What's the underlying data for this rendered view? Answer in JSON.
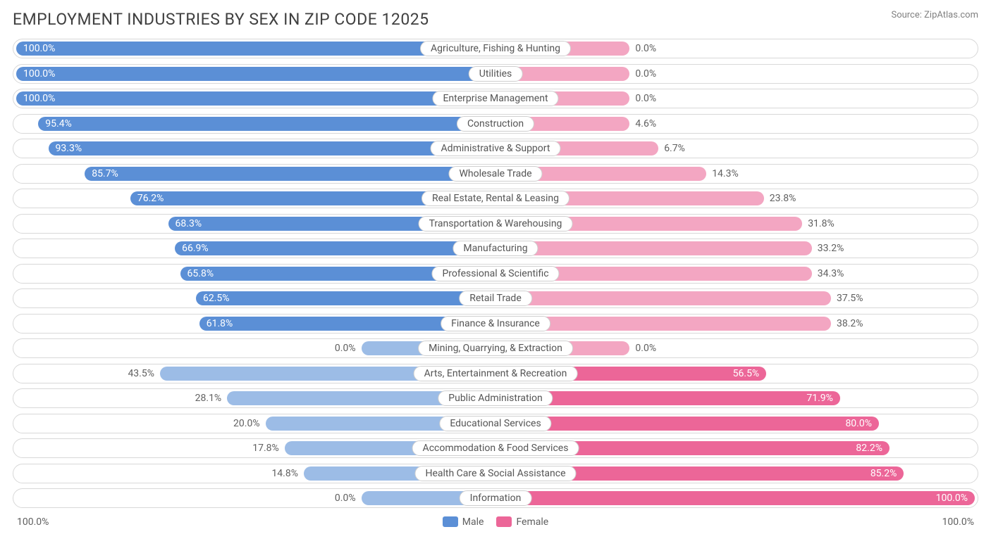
{
  "title": "EMPLOYMENT INDUSTRIES BY SEX IN ZIP CODE 12025",
  "source": "Source: ZipAtlas.com",
  "colors": {
    "male_dark": "#5b8fd6",
    "male_light": "#9cbce6",
    "female_dark": "#ec6698",
    "female_light": "#f3a6c2",
    "row_border": "#d8d8d8",
    "pill_border": "#cfcfcf",
    "text": "#606060",
    "title_text": "#404040",
    "background": "#ffffff"
  },
  "chart": {
    "type": "diverging-bar",
    "axis_left": "100.0%",
    "axis_right": "100.0%",
    "legend": [
      {
        "label": "Male",
        "color": "#5b8fd6"
      },
      {
        "label": "Female",
        "color": "#ec6698"
      }
    ],
    "rows": [
      {
        "label": "Agriculture, Fishing & Hunting",
        "male": 100.0,
        "female": 0.0,
        "female_light_tail": 14
      },
      {
        "label": "Utilities",
        "male": 100.0,
        "female": 0.0,
        "female_light_tail": 14
      },
      {
        "label": "Enterprise Management",
        "male": 100.0,
        "female": 0.0,
        "female_light_tail": 14
      },
      {
        "label": "Construction",
        "male": 95.4,
        "female": 4.6,
        "female_light_tail": 14
      },
      {
        "label": "Administrative & Support",
        "male": 93.3,
        "female": 6.7,
        "female_light_tail": 17
      },
      {
        "label": "Wholesale Trade",
        "male": 85.7,
        "female": 14.3,
        "female_light_tail": 22
      },
      {
        "label": "Real Estate, Rental & Leasing",
        "male": 76.2,
        "female": 23.8,
        "female_light_tail": 28
      },
      {
        "label": "Transportation & Warehousing",
        "male": 68.3,
        "female": 31.8,
        "female_light_tail": 32
      },
      {
        "label": "Manufacturing",
        "male": 66.9,
        "female": 33.2,
        "female_light_tail": 33
      },
      {
        "label": "Professional & Scientific",
        "male": 65.8,
        "female": 34.3,
        "female_light_tail": 33
      },
      {
        "label": "Retail Trade",
        "male": 62.5,
        "female": 37.5,
        "female_light_tail": 35
      },
      {
        "label": "Finance & Insurance",
        "male": 61.8,
        "female": 38.2,
        "female_light_tail": 35
      },
      {
        "label": "Mining, Quarrying, & Extraction",
        "male": 0.0,
        "female": 0.0,
        "male_light_tail": 14,
        "female_light_tail": 14
      },
      {
        "label": "Arts, Entertainment & Recreation",
        "male": 43.5,
        "female": 56.5,
        "male_light_tail": 35
      },
      {
        "label": "Public Administration",
        "male": 28.1,
        "female": 71.9,
        "male_light_tail": 28
      },
      {
        "label": "Educational Services",
        "male": 20.0,
        "female": 80.0,
        "male_light_tail": 24
      },
      {
        "label": "Accommodation & Food Services",
        "male": 17.8,
        "female": 82.2,
        "male_light_tail": 22
      },
      {
        "label": "Health Care & Social Assistance",
        "male": 14.8,
        "female": 85.2,
        "male_light_tail": 20
      },
      {
        "label": "Information",
        "male": 0.0,
        "female": 100.0,
        "male_light_tail": 14
      }
    ]
  }
}
